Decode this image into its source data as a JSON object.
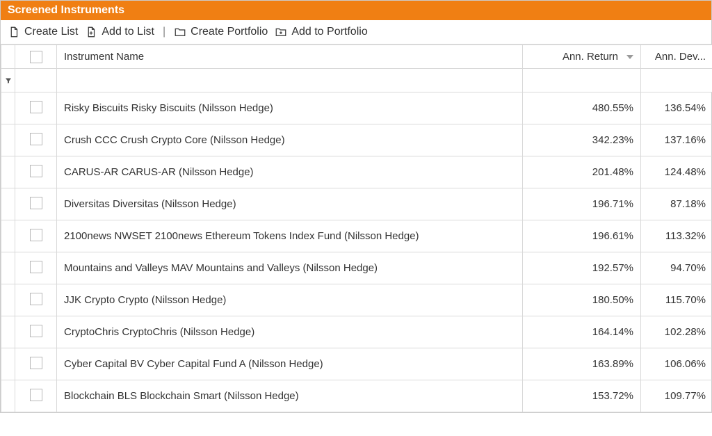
{
  "header": {
    "title": "Screened Instruments"
  },
  "toolbar": {
    "create_list": "Create List",
    "add_to_list": "Add to List",
    "create_portfolio": "Create Portfolio",
    "add_to_portfolio": "Add to Portfolio"
  },
  "columns": {
    "instrument_name": "Instrument Name",
    "ann_return": "Ann. Return",
    "ann_dev": "Ann. Dev..."
  },
  "sort": {
    "column": "ann_return",
    "direction": "desc"
  },
  "rows": [
    {
      "name": "Risky Biscuits Risky Biscuits (Nilsson Hedge)",
      "ann_return": "480.55%",
      "ann_dev": "136.54%"
    },
    {
      "name": "Crush CCC Crush Crypto Core (Nilsson Hedge)",
      "ann_return": "342.23%",
      "ann_dev": "137.16%"
    },
    {
      "name": "CARUS-AR CARUS-AR (Nilsson Hedge)",
      "ann_return": "201.48%",
      "ann_dev": "124.48%"
    },
    {
      "name": "Diversitas Diversitas (Nilsson Hedge)",
      "ann_return": "196.71%",
      "ann_dev": "87.18%"
    },
    {
      "name": "2100news NWSET 2100news Ethereum Tokens Index Fund (Nilsson Hedge)",
      "ann_return": "196.61%",
      "ann_dev": "113.32%"
    },
    {
      "name": "Mountains and Valleys MAV Mountains and Valleys (Nilsson Hedge)",
      "ann_return": "192.57%",
      "ann_dev": "94.70%"
    },
    {
      "name": "JJK Crypto Crypto (Nilsson Hedge)",
      "ann_return": "180.50%",
      "ann_dev": "115.70%"
    },
    {
      "name": "CryptoChris CryptoChris (Nilsson Hedge)",
      "ann_return": "164.14%",
      "ann_dev": "102.28%"
    },
    {
      "name": "Cyber Capital BV Cyber Capital Fund A (Nilsson Hedge)",
      "ann_return": "163.89%",
      "ann_dev": "106.06%"
    },
    {
      "name": "Blockchain BLS Blockchain Smart (Nilsson Hedge)",
      "ann_return": "153.72%",
      "ann_dev": "109.77%"
    }
  ],
  "colors": {
    "header_bg": "#f07f13",
    "border": "#d9d9d9",
    "text": "#333333"
  }
}
